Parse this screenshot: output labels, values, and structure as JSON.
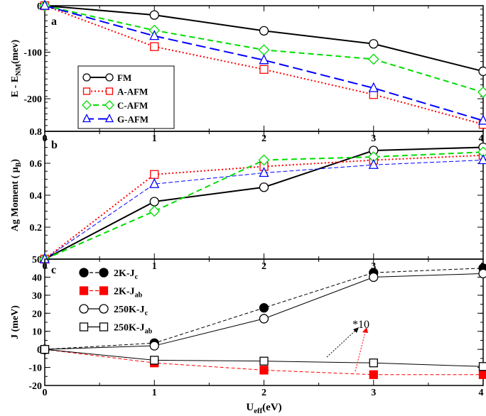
{
  "chart_data": [
    {
      "panel": "a",
      "type": "line",
      "title": "",
      "ylabel_main": "E - E",
      "ylabel_sub": "NM",
      "ylabel_tail": "(mev)",
      "ylim": [
        -270,
        0
      ],
      "yticks": [
        0,
        -100,
        -200
      ],
      "ytick_labels": [
        "0",
        "-100",
        "-200"
      ],
      "bottom_label": "0.8",
      "x": [
        0,
        1,
        2,
        3,
        4
      ],
      "xtick_labels": [
        "0",
        "1",
        "2",
        "3",
        "4"
      ],
      "legend": "bottom-left",
      "series": [
        {
          "name": "FM",
          "label": "FM",
          "sub": "",
          "color": "#000000",
          "marker": "circle",
          "dash": "",
          "width": 2,
          "values": [
            0,
            -20,
            -54,
            -82,
            -141
          ]
        },
        {
          "name": "A-AFM",
          "label": "A-AFM",
          "sub": "",
          "color": "#ff0000",
          "marker": "square",
          "dash": "2,3",
          "width": 2,
          "values": [
            0,
            -88,
            -137,
            -191,
            -255
          ]
        },
        {
          "name": "C-AFM",
          "label": "C-AFM",
          "sub": "",
          "color": "#00dd00",
          "marker": "diamond",
          "dash": "8,5",
          "width": 2,
          "values": [
            0,
            -53,
            -95,
            -115,
            -186
          ]
        },
        {
          "name": "G-AFM",
          "label": "G-AFM",
          "sub": "",
          "color": "#0000ff",
          "marker": "triangle",
          "dash": "14,6",
          "width": 2,
          "values": [
            0,
            -65,
            -117,
            -177,
            -247
          ]
        }
      ]
    },
    {
      "panel": "b",
      "type": "line",
      "ylabel_main": "Ag Moment ( μ",
      "ylabel_sub": "B",
      "ylabel_tail": ")",
      "ylim": [
        0,
        0.8
      ],
      "yticks": [
        0.2,
        0.4,
        0.6
      ],
      "ytick_labels": [
        "0.2",
        "0.4",
        "0.6"
      ],
      "bottom_label": "50",
      "x": [
        0,
        1,
        2,
        3,
        4
      ],
      "xtick_labels": [
        "0",
        "1",
        "2",
        "3",
        "4"
      ],
      "series": [
        {
          "name": "FM",
          "color": "#000000",
          "marker": "circle",
          "dash": "",
          "width": 2,
          "values": [
            0,
            0.36,
            0.45,
            0.68,
            0.7
          ]
        },
        {
          "name": "A-AFM",
          "color": "#ff0000",
          "marker": "square",
          "dash": "2,3",
          "width": 2,
          "values": [
            0,
            0.53,
            0.58,
            0.62,
            0.65
          ]
        },
        {
          "name": "C-AFM",
          "color": "#00dd00",
          "marker": "diamond",
          "dash": "8,5",
          "width": 2,
          "values": [
            0,
            0.3,
            0.62,
            0.64,
            0.67
          ]
        },
        {
          "name": "G-AFM",
          "color": "#0000ff",
          "marker": "triangle",
          "dash": "6,3",
          "width": 1,
          "values": [
            0,
            0.47,
            0.54,
            0.59,
            0.62
          ]
        }
      ]
    },
    {
      "panel": "c",
      "type": "line",
      "ylabel_main": "J (meV)",
      "ylabel_sub": "",
      "ylabel_tail": "",
      "ylim": [
        -20,
        50
      ],
      "yticks": [
        -20,
        -10,
        0,
        10,
        20,
        30,
        40
      ],
      "ytick_labels": [
        "-20",
        "-10",
        "0",
        "10",
        "20",
        "30",
        "40"
      ],
      "x": [
        0,
        1,
        2,
        3,
        4
      ],
      "xtick_labels": [
        "0",
        "1",
        "2",
        "3",
        "4"
      ],
      "xlabel_main": "U",
      "xlabel_sub": "eff",
      "xlabel_tail": "(eV)",
      "legend": "top-left",
      "annotation": "*10",
      "series": [
        {
          "name": "2K-Jc",
          "label": "2K-J",
          "sub": "c",
          "color": "#000000",
          "marker": "circle",
          "filled": true,
          "dash": "5,3",
          "width": 1,
          "values": [
            0,
            3.5,
            23,
            42.5,
            45
          ]
        },
        {
          "name": "2K-Jab",
          "label": "2K-J",
          "sub": "ab",
          "color": "#ff0000",
          "marker": "square",
          "filled": true,
          "dash": "5,3",
          "width": 1,
          "values": [
            0,
            -7.5,
            -11.5,
            -14,
            -14
          ]
        },
        {
          "name": "250K-Jc",
          "label": "250K-J",
          "sub": "c",
          "color": "#000000",
          "marker": "circle",
          "filled": false,
          "dash": "",
          "width": 1,
          "values": [
            0,
            2,
            17,
            40,
            42
          ]
        },
        {
          "name": "250K-Jab",
          "label": "250K-J",
          "sub": "ab",
          "color": "#000000",
          "marker": "square",
          "filled": false,
          "dash": "",
          "width": 1,
          "values": [
            0,
            -6,
            -6.5,
            -7.5,
            -9.5
          ]
        }
      ]
    }
  ]
}
